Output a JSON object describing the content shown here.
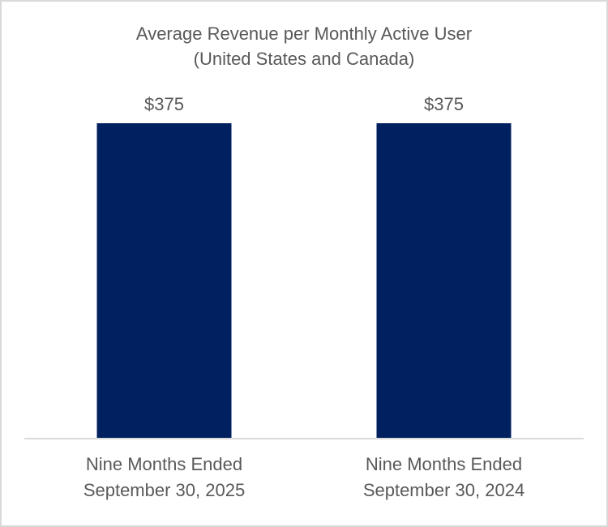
{
  "chart_data": {
    "type": "bar",
    "title": "Average Revenue per Monthly Active User",
    "subtitle": "(United States and Canada)",
    "categories": [
      [
        "Nine Months Ended",
        "September 30, 2025"
      ],
      [
        "Nine Months Ended",
        "September 30, 2024"
      ]
    ],
    "values": [
      375,
      375
    ],
    "data_labels": [
      "$375",
      "$375"
    ],
    "xlabel": "",
    "ylabel": "",
    "ylim": [
      0,
      375
    ],
    "grid": false,
    "legend": "none",
    "colors": {
      "bar": "#002060",
      "axis": "#d9d9d9",
      "text": "#595959",
      "border": "#d9d9d9"
    }
  }
}
